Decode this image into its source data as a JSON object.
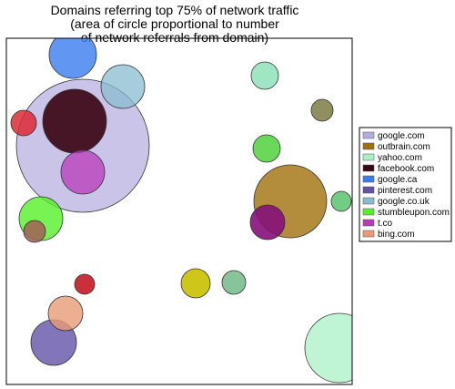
{
  "chart_data": {
    "type": "scatter",
    "title": "Domains referring top 75% of network traffic",
    "subtitle": [
      "(area of circle proportional to number",
      "of network referrals from domain)"
    ],
    "xlim": [
      0,
      380
    ],
    "ylim": [
      0,
      380
    ],
    "grid": false,
    "legend_placement": "right",
    "series": [
      {
        "name": "google.com",
        "color": "#b3abe0"
      },
      {
        "name": "outbrain.com",
        "color": "#a0700a"
      },
      {
        "name": "yahoo.com",
        "color": "#a9f0c6"
      },
      {
        "name": "facebook.com",
        "color": "#3b0716"
      },
      {
        "name": "google.ca",
        "color": "#3b7cf0"
      },
      {
        "name": "pinterest.com",
        "color": "#6352a8"
      },
      {
        "name": "google.co.uk",
        "color": "#88bccf"
      },
      {
        "name": "stumbleupon.com",
        "color": "#55f028"
      },
      {
        "name": "t.co",
        "color": "#b939b9"
      },
      {
        "name": "bing.com",
        "color": "#e99b76"
      }
    ],
    "points": [
      {
        "x": 84,
        "y": 262,
        "r": 73,
        "color": "#b3abe0",
        "opacity": 0.7
      },
      {
        "x": 366,
        "y": 40,
        "r": 38,
        "color": "#a9f0c6",
        "opacity": 0.75
      },
      {
        "x": 312,
        "y": 201,
        "r": 40,
        "color": "#a0700a",
        "opacity": 0.8
      },
      {
        "x": 128,
        "y": 327,
        "r": 24,
        "color": "#88bccf",
        "opacity": 0.75
      },
      {
        "x": 75,
        "y": 289,
        "r": 35,
        "color": "#3b0716",
        "opacity": 0.92
      },
      {
        "x": 73,
        "y": 362,
        "r": 26,
        "color": "#3b7cf0",
        "opacity": 0.8
      },
      {
        "x": 84,
        "y": 233,
        "r": 24,
        "color": "#b939b9",
        "opacity": 0.75
      },
      {
        "x": 52,
        "y": 46,
        "r": 25,
        "color": "#6352a8",
        "opacity": 0.8
      },
      {
        "x": 38,
        "y": 182,
        "r": 24,
        "color": "#55f028",
        "opacity": 0.8
      },
      {
        "x": 65,
        "y": 78,
        "r": 19,
        "color": "#e99b76",
        "opacity": 0.8
      },
      {
        "x": 208,
        "y": 111,
        "r": 16,
        "color": "#c9c000",
        "opacity": 0.9
      },
      {
        "x": 287,
        "y": 178,
        "r": 19,
        "color": "#860f7a",
        "opacity": 0.9
      },
      {
        "x": 250,
        "y": 112,
        "r": 13,
        "color": "#5fb077",
        "opacity": 0.75
      },
      {
        "x": 347,
        "y": 301,
        "r": 12,
        "color": "#6a6a2a",
        "opacity": 0.75
      },
      {
        "x": 284,
        "y": 339,
        "r": 15,
        "color": "#7fdfb0",
        "opacity": 0.75
      },
      {
        "x": 286,
        "y": 259,
        "r": 15,
        "color": "#45d030",
        "opacity": 0.8
      },
      {
        "x": 19,
        "y": 287,
        "r": 14,
        "color": "#dd2a35",
        "opacity": 0.85
      },
      {
        "x": 86,
        "y": 110,
        "r": 11,
        "color": "#c41a25",
        "opacity": 0.9
      },
      {
        "x": 31,
        "y": 168,
        "r": 12,
        "color": "#a25f55",
        "opacity": 0.85
      },
      {
        "x": 368,
        "y": 201,
        "r": 11,
        "color": "#4fbf65",
        "opacity": 0.8
      }
    ]
  }
}
